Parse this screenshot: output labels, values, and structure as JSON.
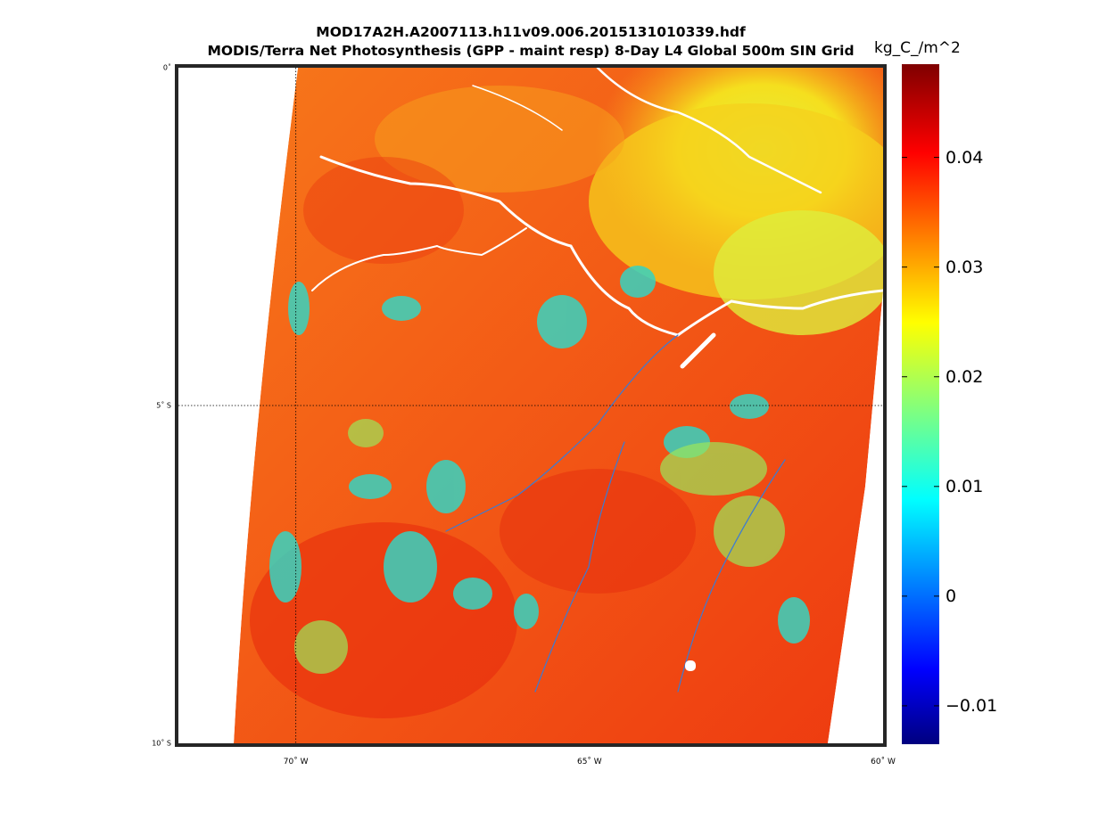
{
  "titles": {
    "line1": "MOD17A2H.A2007113.h11v09.006.2015131010339.hdf",
    "line2": "MODIS/Terra Net Photosynthesis (GPP - maint resp) 8-Day L4 Global 500m SIN Grid"
  },
  "colorbar": {
    "unit": "kg_C_/m^2",
    "range": [
      -0.0135,
      0.0485
    ],
    "ticks": [
      {
        "value": 0.04,
        "label": "0.04"
      },
      {
        "value": 0.03,
        "label": "0.03"
      },
      {
        "value": 0.02,
        "label": "0.02"
      },
      {
        "value": 0.01,
        "label": "0.01"
      },
      {
        "value": 0,
        "label": "0"
      },
      {
        "value": -0.01,
        "label": "−0.01"
      }
    ],
    "colormap": "jet"
  },
  "map": {
    "lat_range": [
      -10,
      0
    ],
    "lon_range": [
      -72,
      -60
    ],
    "lat_labels": [
      {
        "lat": 0,
        "label": "0˚"
      },
      {
        "lat": -5,
        "label": "5˚ S"
      },
      {
        "lat": -10,
        "label": "10˚ S"
      }
    ],
    "lon_labels": [
      {
        "lon": -70,
        "label": "70˚ W"
      },
      {
        "lon": -65,
        "label": "65˚ W"
      },
      {
        "lon": -60,
        "label": "60˚ W"
      }
    ],
    "grid": {
      "meridian": -70,
      "parallel": -5,
      "style": "dotted"
    },
    "colors": {
      "frame": "#262626",
      "dominant": "#f24a12",
      "northeast": "#f0e020",
      "patches": "#32d2c0",
      "rivers": "#ffffff"
    }
  }
}
